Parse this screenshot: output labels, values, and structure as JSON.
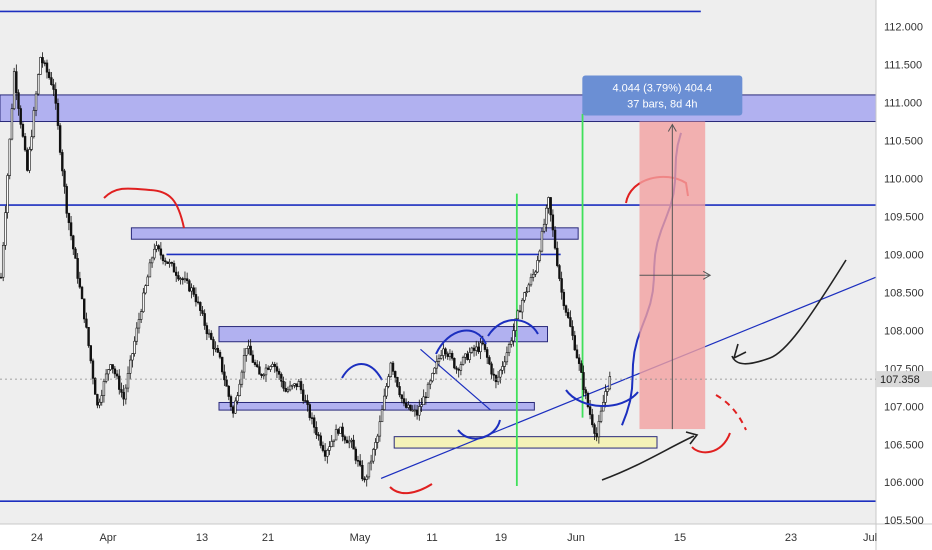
{
  "chart_data": {
    "type": "candlestick",
    "title": "",
    "xlabel": "",
    "ylabel": "",
    "ylim": [
      105.45,
      112.35
    ],
    "y_ticks": [
      "112.000",
      "111.500",
      "111.000",
      "110.500",
      "110.000",
      "109.500",
      "109.000",
      "108.500",
      "108.000",
      "107.500",
      "107.000",
      "106.500",
      "106.000",
      "105.500"
    ],
    "x_ticks": [
      "24",
      "Apr",
      "13",
      "21",
      "May",
      "11",
      "19",
      "Jun",
      "15",
      "23",
      "Jul"
    ],
    "grid": false,
    "last_price": "107.358",
    "price_path": [
      [
        0,
        108.7
      ],
      [
        3,
        111.4
      ],
      [
        6,
        110.1
      ],
      [
        9,
        111.6
      ],
      [
        12,
        111.2
      ],
      [
        15,
        109.6
      ],
      [
        19,
        108.2
      ],
      [
        22,
        107.0
      ],
      [
        25,
        107.6
      ],
      [
        28,
        107.1
      ],
      [
        32,
        108.3
      ],
      [
        35,
        109.1
      ],
      [
        38,
        108.9
      ],
      [
        41,
        108.7
      ],
      [
        44,
        108.5
      ],
      [
        47,
        108.0
      ],
      [
        50,
        107.6
      ],
      [
        53,
        106.9
      ],
      [
        56,
        107.8
      ],
      [
        59,
        107.4
      ],
      [
        62,
        107.6
      ],
      [
        65,
        107.2
      ],
      [
        68,
        107.3
      ],
      [
        71,
        106.8
      ],
      [
        74,
        106.4
      ],
      [
        77,
        106.7
      ],
      [
        80,
        106.5
      ],
      [
        83,
        106.0
      ],
      [
        86,
        106.6
      ],
      [
        89,
        107.6
      ],
      [
        92,
        107.0
      ],
      [
        95,
        106.9
      ],
      [
        98,
        107.3
      ],
      [
        101,
        107.8
      ],
      [
        104,
        107.5
      ],
      [
        107,
        107.7
      ],
      [
        110,
        107.8
      ],
      [
        113,
        107.3
      ],
      [
        116,
        107.8
      ],
      [
        119,
        108.4
      ],
      [
        122,
        108.8
      ],
      [
        125,
        109.7
      ],
      [
        128,
        108.5
      ],
      [
        131,
        107.8
      ],
      [
        134,
        107.0
      ],
      [
        136,
        106.6
      ],
      [
        138,
        107.2
      ],
      [
        139,
        107.36
      ]
    ],
    "zones": [
      {
        "name": "resistance-top",
        "y0": 110.75,
        "y1": 111.1,
        "color": "#9c9cf0",
        "x0": 0,
        "x1": 200
      },
      {
        "name": "zone-109",
        "y0": 109.2,
        "y1": 109.35,
        "color": "#9c9cf0",
        "x0": 30,
        "x1": 132
      },
      {
        "name": "zone-108",
        "y0": 107.85,
        "y1": 108.05,
        "color": "#9c9cf0",
        "x0": 50,
        "x1": 125
      },
      {
        "name": "zone-107",
        "y0": 106.95,
        "y1": 107.05,
        "color": "#9c9cf0",
        "x0": 50,
        "x1": 122
      },
      {
        "name": "demand-zone",
        "y0": 106.45,
        "y1": 106.6,
        "color": "#f6f3a6",
        "x0": 90,
        "x1": 150
      }
    ],
    "horizontal_lines": [
      {
        "value": 112.2,
        "x0": 0,
        "x1": 160,
        "color": "#1c2fbf"
      },
      {
        "value": 109.65,
        "x0": 0,
        "x1": 200,
        "color": "#1c2fbf"
      },
      {
        "value": 109.0,
        "x0": 38,
        "x1": 128,
        "color": "#1c2fbf"
      },
      {
        "value": 105.75,
        "x0": 0,
        "x1": 200,
        "color": "#1c2fbf"
      }
    ],
    "trendlines": [
      {
        "from": [
          87,
          106.05
        ],
        "to": [
          200,
          108.7
        ],
        "color": "#1c2fbf"
      },
      {
        "from": [
          96,
          107.75
        ],
        "to": [
          112,
          106.95
        ],
        "color": "#1c2fbf"
      }
    ],
    "vertical_lines": [
      {
        "x": 118,
        "y0": 105.95,
        "y1": 109.8,
        "color": "#3fe05a"
      },
      {
        "x": 133,
        "y0": 106.85,
        "y1": 110.85,
        "color": "#3fe05a"
      }
    ],
    "projection": {
      "from": [
        142,
        106.75
      ],
      "to": [
        156,
        110.6
      ],
      "color": "#1c2fbf"
    },
    "measure": {
      "x0": 146,
      "x1": 161,
      "y0": 106.7,
      "y1": 110.75,
      "color": "#f3a0a0",
      "label_line1": "4.044 (3.79%) 404.4",
      "label_line2": "37 bars, 8d 4h"
    },
    "colors": {
      "background": "#eeeeee",
      "candle": "#111111",
      "zone": "#9c9cf0",
      "demand": "#f6f3a6",
      "line": "#1c2fbf",
      "vertical": "#3fe05a",
      "measure": "#f3a0a0",
      "label": "#6b8fd4"
    }
  }
}
